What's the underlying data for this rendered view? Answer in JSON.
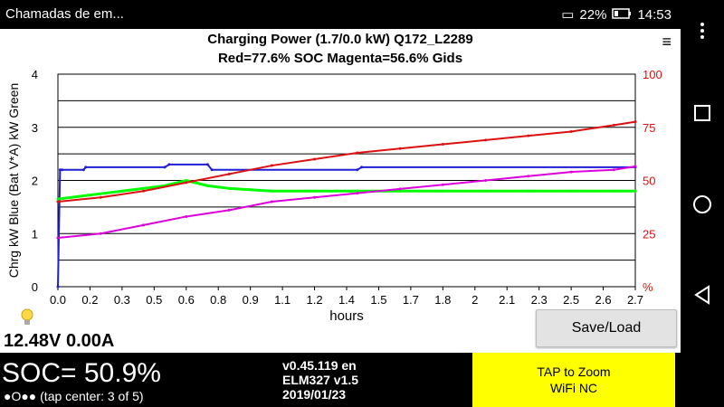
{
  "status": {
    "left_text": "Chamadas de em...",
    "battery": "22%",
    "time": "14:53"
  },
  "app": {
    "title": "Charging Power (1.7/0.0 kW)   Q172_L2289",
    "subtitle": "Red=77.6% SOC    Magenta=56.6% Gids",
    "menu_icon": "vertical-dots-icon",
    "voltage_text": "12.48V 0.00A",
    "save_button": "Save/Load",
    "soc_text": "SOC= 50.9%",
    "pager_text": "●O●● (tap center: 3 of 5)",
    "version_lines": [
      "v0.45.119 en",
      "ELM327 v1.5",
      "2019/01/23"
    ],
    "zoom_lines": [
      "TAP to Zoom",
      "WiFi NC"
    ]
  },
  "colors": {
    "blue": "#1f1fd8",
    "green": "#00ff00",
    "red": "#dd1111",
    "magenta": "#dd00dd",
    "zoom_bg": "#ffff00"
  },
  "chart_data": {
    "type": "line",
    "xlabel": "hours",
    "ylabel_left": "Chrg kW Blue  (Bat V*A) kW Green",
    "x_ticks": [
      "0.0",
      "0.2",
      "0.3",
      "0.5",
      "0.6",
      "0.8",
      "0.9",
      "1.1",
      "1.2",
      "1.4",
      "1.5",
      "1.7",
      "1.8",
      "2",
      "2.1",
      "2.3",
      "2.5",
      "2.6",
      "2.7"
    ],
    "x_range": [
      0,
      2.7
    ],
    "y_left_ticks": [
      "0",
      "1",
      "2",
      "3",
      "4"
    ],
    "y_left_range": [
      0,
      4
    ],
    "y_right_ticks": [
      "%",
      "25",
      "50",
      "75",
      "100"
    ],
    "y_right_range": [
      0,
      100
    ],
    "grid": true,
    "series": [
      {
        "name": "Chrg kW",
        "axis": "left",
        "x": [
          0.0,
          0.01,
          0.02,
          0.12,
          0.13,
          0.5,
          0.52,
          0.7,
          0.72,
          1.4,
          1.42,
          2.7
        ],
        "y": [
          0.0,
          2.2,
          2.2,
          2.2,
          2.25,
          2.25,
          2.3,
          2.3,
          2.2,
          2.2,
          2.25,
          2.25
        ]
      },
      {
        "name": "Bat V*A kW",
        "axis": "left",
        "x": [
          0.0,
          0.1,
          0.2,
          0.3,
          0.4,
          0.5,
          0.55,
          0.6,
          0.7,
          0.8,
          1.0,
          1.2,
          1.4,
          1.6,
          1.8,
          2.0,
          2.2,
          2.4,
          2.6,
          2.7
        ],
        "y": [
          1.65,
          1.7,
          1.75,
          1.8,
          1.85,
          1.9,
          1.95,
          2.0,
          1.9,
          1.85,
          1.8,
          1.8,
          1.8,
          1.8,
          1.8,
          1.8,
          1.8,
          1.8,
          1.8,
          1.8
        ]
      },
      {
        "name": "SOC %",
        "axis": "right",
        "x": [
          0.0,
          0.2,
          0.4,
          0.6,
          0.8,
          1.0,
          1.2,
          1.4,
          1.6,
          1.8,
          2.0,
          2.2,
          2.4,
          2.6,
          2.7
        ],
        "y": [
          40,
          42,
          45,
          49,
          53,
          57,
          60,
          63,
          65,
          67,
          69,
          71,
          73,
          76,
          77.6
        ]
      },
      {
        "name": "Gids %",
        "axis": "right",
        "x": [
          0.0,
          0.2,
          0.4,
          0.6,
          0.8,
          1.0,
          1.2,
          1.4,
          1.6,
          1.8,
          2.0,
          2.2,
          2.4,
          2.6,
          2.7
        ],
        "y": [
          23,
          25,
          29,
          33,
          36,
          40,
          42,
          44,
          46,
          48,
          50,
          52,
          54,
          55,
          56.6
        ]
      }
    ]
  }
}
